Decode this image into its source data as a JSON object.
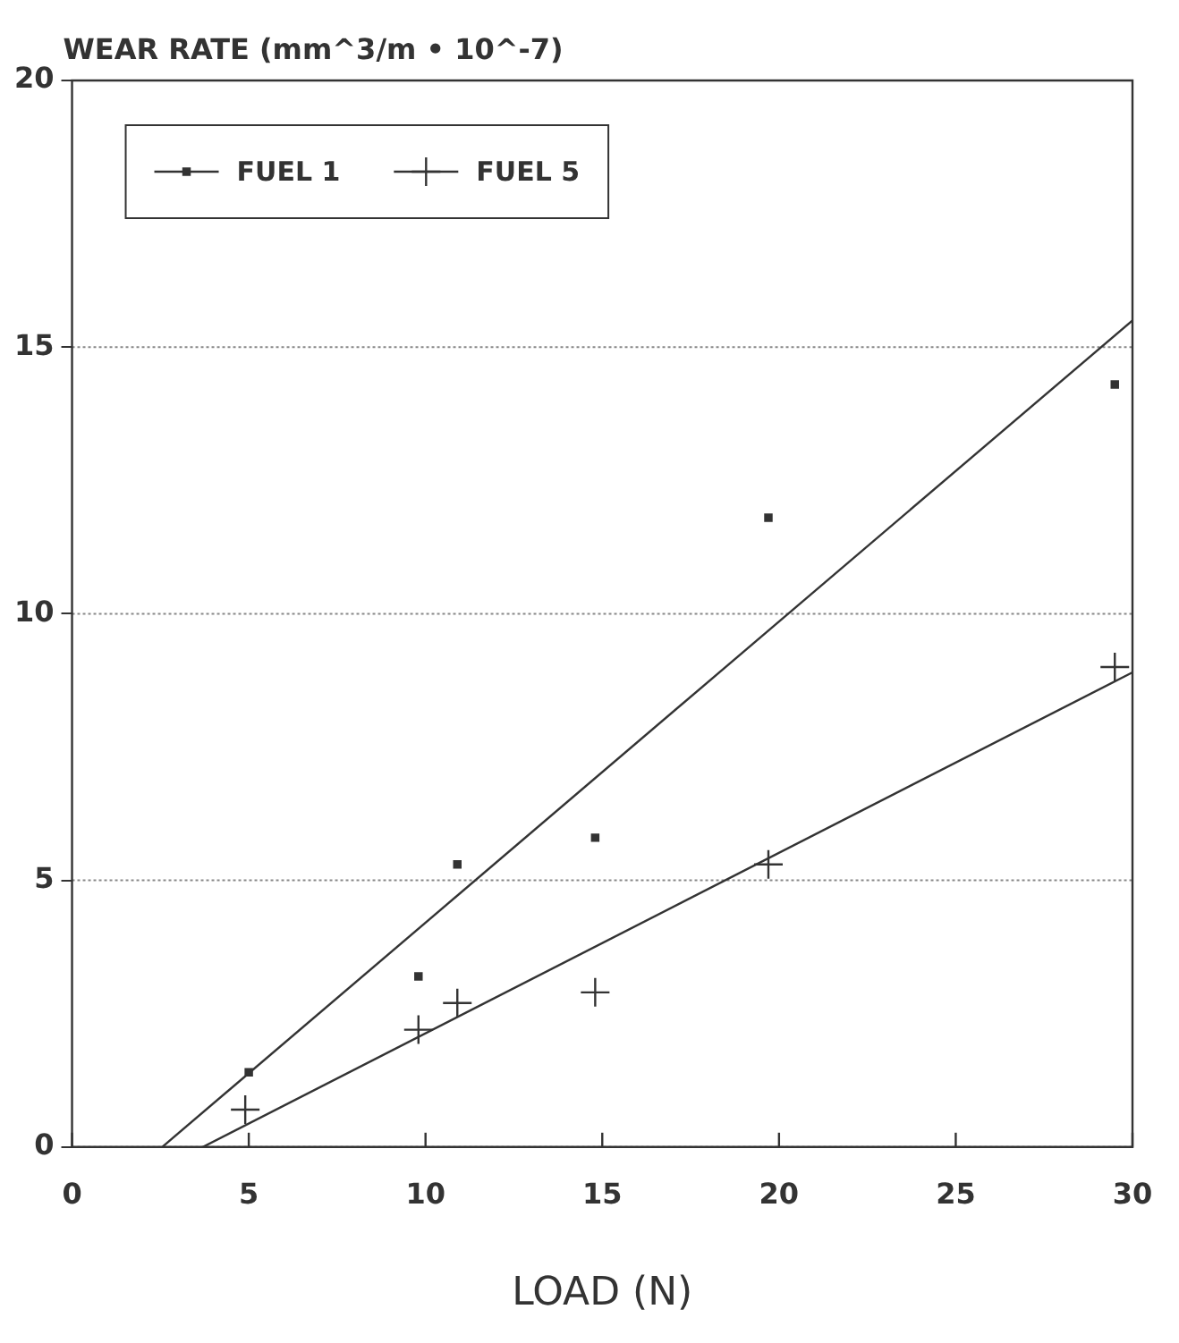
{
  "chart_data": {
    "type": "scatter",
    "ylabel": "WEAR RATE (mm^3/m • 10^-7)",
    "xlabel": "LOAD (N)",
    "xlim": [
      0,
      30
    ],
    "xticks": [
      0,
      5,
      10,
      15,
      20,
      25,
      30
    ],
    "ylim": [
      0,
      20
    ],
    "yticks": [
      0,
      5,
      10,
      15,
      20
    ],
    "grid": "y",
    "legend": "top left",
    "series": [
      {
        "name": "FUEL 1",
        "color": "#333333",
        "marker": "square",
        "x": [
          5,
          9.8,
          10.9,
          14.8,
          19.7,
          29.5
        ],
        "values": [
          1.4,
          3.2,
          5.3,
          5.8,
          11.8,
          14.3
        ]
      },
      {
        "name": "FUEL 5",
        "color": "#333333",
        "marker": "cross",
        "x": [
          4.9,
          9.8,
          10.9,
          14.8,
          19.7,
          29.5
        ],
        "values": [
          0.7,
          2.2,
          2.7,
          2.9,
          5.3,
          9.0
        ]
      },
      {
        "type": "line",
        "color": "#333333",
        "marker": "none",
        "x": [
          2.55,
          30
        ],
        "values": [
          0,
          15.5
        ]
      },
      {
        "type": "line",
        "color": "#333333",
        "marker": "none",
        "x": [
          3.7,
          30
        ],
        "values": [
          0,
          8.9
        ]
      }
    ]
  }
}
